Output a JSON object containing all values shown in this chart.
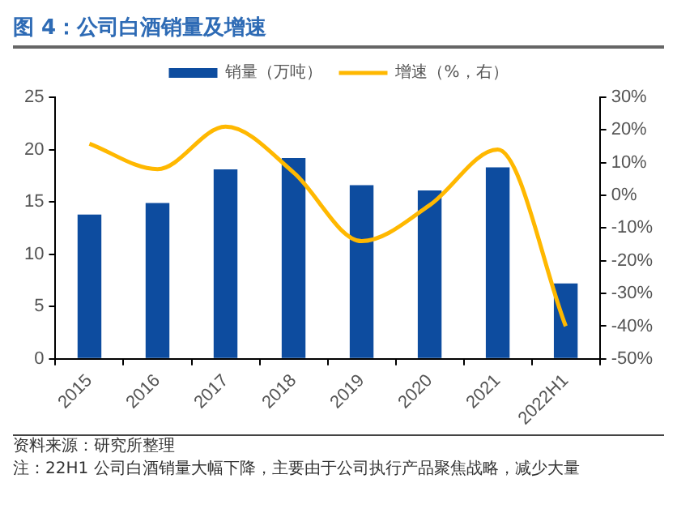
{
  "chart_data": {
    "type": "bar",
    "title": "图 4：公司白酒销量及增速",
    "categories": [
      "2015",
      "2016",
      "2017",
      "2018",
      "2019",
      "2020",
      "2021",
      "2022H1"
    ],
    "series": [
      {
        "name": "销量（万吨）",
        "color": "#0d4c9f",
        "values": [
          13.8,
          14.9,
          18.1,
          19.2,
          16.6,
          16.1,
          18.3,
          7.2
        ]
      },
      {
        "name": "增速（%，右）",
        "type": "line",
        "axis": "y2",
        "color": "#ffb800",
        "marker": "none",
        "values": [
          15.8,
          8,
          21,
          7,
          -14,
          -3,
          14,
          -40
        ]
      }
    ],
    "ylim": [
      0,
      25
    ],
    "yticks": [
      0,
      5,
      10,
      15,
      20,
      25
    ],
    "y2lim": [
      -50,
      30
    ],
    "y2ticks": [
      {
        "value": -50,
        "label": "-50%"
      },
      {
        "value": -40,
        "label": "-40%"
      },
      {
        "value": -30,
        "label": "-30%"
      },
      {
        "value": -20,
        "label": "-20%"
      },
      {
        "value": -10,
        "label": "-10%"
      },
      {
        "value": 0,
        "label": "0%"
      },
      {
        "value": 10,
        "label": "10%"
      },
      {
        "value": 20,
        "label": "20%"
      },
      {
        "value": 30,
        "label": "30%"
      }
    ],
    "grid": false,
    "legend": "top",
    "annotations": [
      "资料来源：研究所整理",
      "注：22H1 公司白酒销量大幅下降，主要由于公司执行产品聚焦战略，减少大量"
    ]
  }
}
